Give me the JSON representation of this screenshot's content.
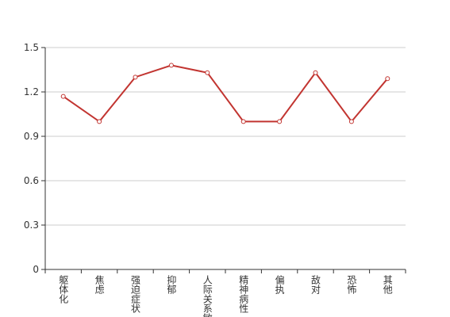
{
  "chart_data": {
    "type": "line",
    "categories": [
      "躯体化",
      "焦虑",
      "强迫症状",
      "抑郁",
      "人际关系敏感",
      "精神病性",
      "偏执",
      "敌对",
      "恐怖",
      "其他"
    ],
    "values": [
      1.17,
      1.0,
      1.3,
      1.38,
      1.33,
      1.0,
      1.0,
      1.33,
      1.0,
      1.29
    ],
    "color": "#c23531",
    "ylim": [
      0,
      1.5
    ],
    "yticks": [
      0,
      0.3,
      0.6,
      0.9,
      1.2,
      1.5
    ],
    "grid": true
  }
}
